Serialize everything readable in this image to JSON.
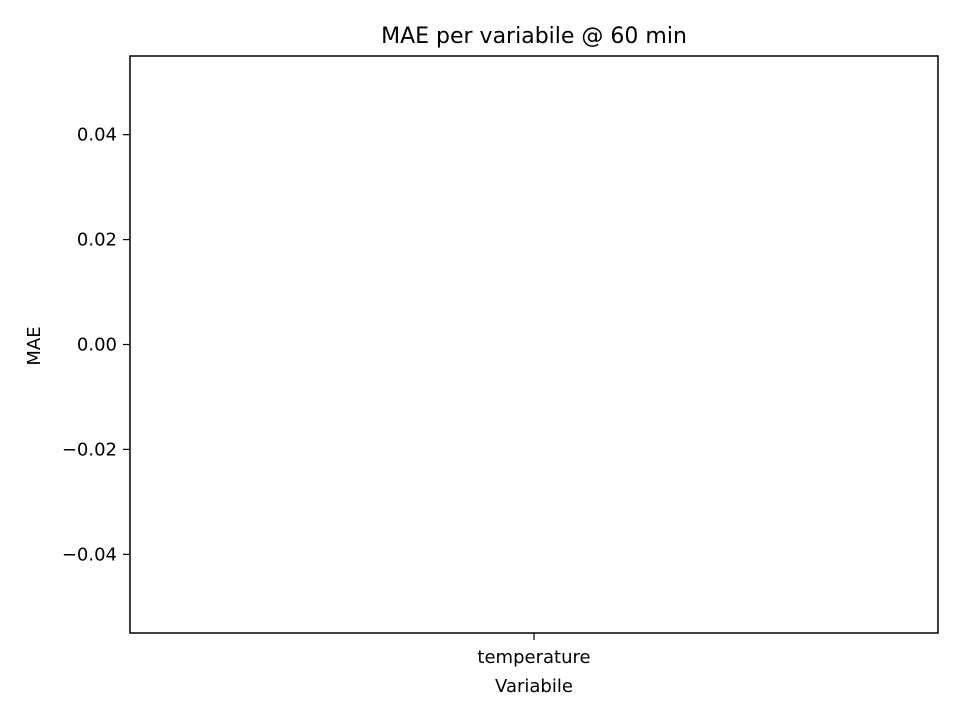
{
  "chart_data": {
    "type": "bar",
    "title": "MAE per variabile @ 60 min",
    "xlabel": "Variabile",
    "ylabel": "MAE",
    "categories": [
      "temperature"
    ],
    "values": [
      0
    ],
    "ylim": [
      -0.055,
      0.055
    ],
    "yticks": [
      0.04,
      0.02,
      0.0,
      -0.02,
      -0.04
    ],
    "ytick_labels": [
      "0.04",
      "0.02",
      "0.00",
      "−0.02",
      "−0.04"
    ],
    "grid": false,
    "legend": "none"
  }
}
